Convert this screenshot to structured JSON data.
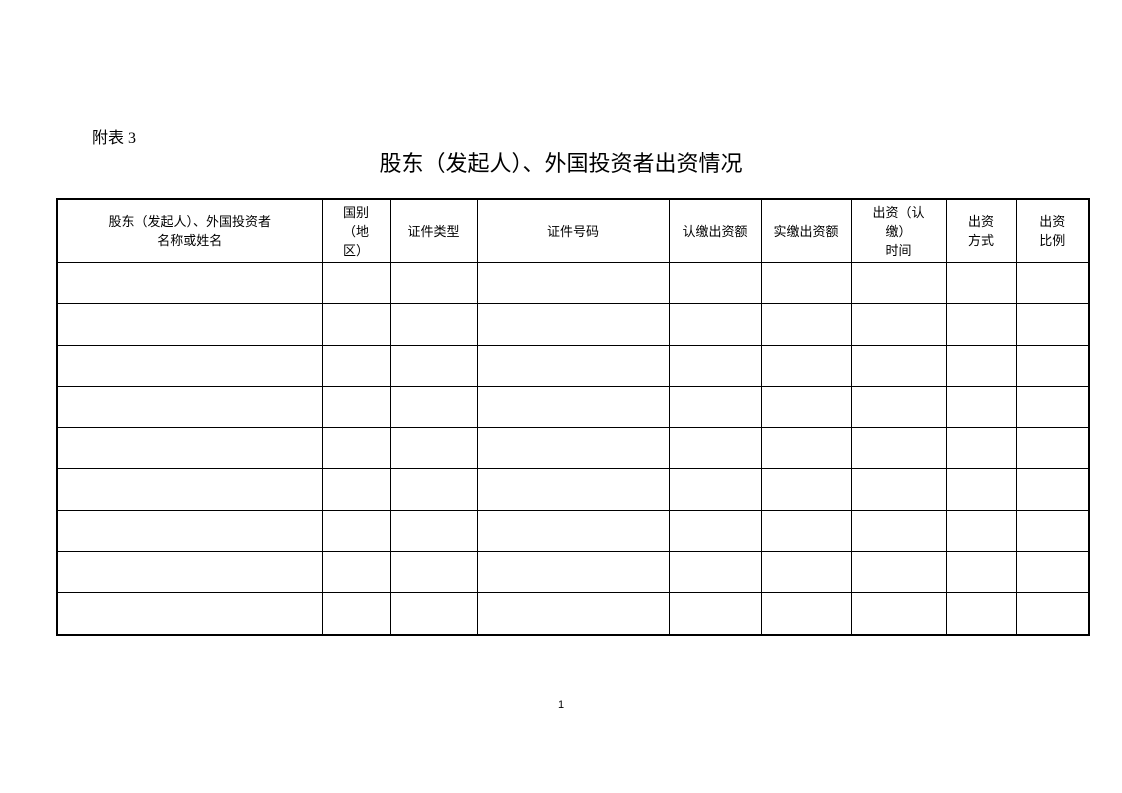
{
  "document": {
    "label": "附表 3",
    "title": "股东（发起人）、外国投资者出资情况",
    "page_number": "1"
  },
  "table": {
    "headers": [
      "股东（发起人）、外国投资者\n名称或姓名",
      "国别\n（地\n区）",
      "证件类型",
      "证件号码",
      "认缴出资额",
      "实缴出资额",
      "出资（认\n缴）\n时间",
      "出资\n方式",
      "出资\n比例"
    ],
    "rows": [
      [
        "",
        "",
        "",
        "",
        "",
        "",
        "",
        "",
        ""
      ],
      [
        "",
        "",
        "",
        "",
        "",
        "",
        "",
        "",
        ""
      ],
      [
        "",
        "",
        "",
        "",
        "",
        "",
        "",
        "",
        ""
      ],
      [
        "",
        "",
        "",
        "",
        "",
        "",
        "",
        "",
        ""
      ],
      [
        "",
        "",
        "",
        "",
        "",
        "",
        "",
        "",
        ""
      ],
      [
        "",
        "",
        "",
        "",
        "",
        "",
        "",
        "",
        ""
      ],
      [
        "",
        "",
        "",
        "",
        "",
        "",
        "",
        "",
        ""
      ],
      [
        "",
        "",
        "",
        "",
        "",
        "",
        "",
        "",
        ""
      ],
      [
        "",
        "",
        "",
        "",
        "",
        "",
        "",
        "",
        ""
      ]
    ]
  }
}
